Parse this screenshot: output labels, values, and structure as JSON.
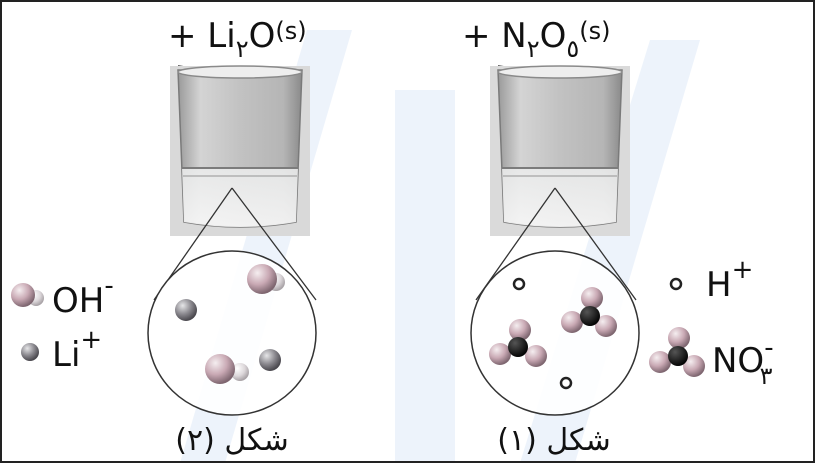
{
  "left_panel": {
    "reagent": {
      "prefix": "+ Li",
      "subscript": "٢",
      "main": "O",
      "state": "(s)"
    },
    "legend": [
      {
        "label": "OH",
        "charge": "-"
      },
      {
        "label": "Li",
        "charge": "+"
      }
    ],
    "caption": "شكل (٢)"
  },
  "right_panel": {
    "reagent": {
      "prefix": "+ N",
      "subscript1": "٢",
      "main": "O",
      "subscript2": "٥",
      "state": "(s)"
    },
    "legend": [
      {
        "label": "H",
        "charge": "+"
      },
      {
        "label": "NO",
        "charge": "-",
        "subscript": "٣"
      }
    ],
    "caption": "شكل (١)"
  },
  "colors": {
    "watermark": "#dfe9f7",
    "ion_pink": "#c9a9b4",
    "ion_gray": "#8c8a90",
    "nitrate_center": "#111111"
  }
}
